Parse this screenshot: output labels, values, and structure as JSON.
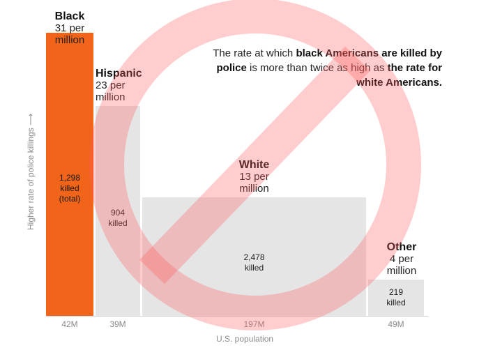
{
  "chart_data": {
    "type": "bar",
    "variable_width": true,
    "ylabel": "Higher rate of police killings ⟶",
    "xlabel": "U.S. population",
    "annotation": {
      "parts": [
        {
          "text": "The rate at which ",
          "bold": false
        },
        {
          "text": "black Americans are killed by police",
          "bold": true
        },
        {
          "text": " is more than twice as high as ",
          "bold": false
        },
        {
          "text": "the rate for white Americans.",
          "bold": true
        }
      ]
    },
    "unit_per": "per",
    "unit_million": "million",
    "series": [
      {
        "name": "Black",
        "rate": 31,
        "rate_label": "31 per",
        "population": 42,
        "population_label": "42M",
        "killed": 1298,
        "killed_label": "1,298",
        "killed_sub": "killed",
        "killed_sub2": "(total)",
        "color": "#f26419"
      },
      {
        "name": "Hispanic",
        "rate": 23,
        "rate_label": "23 per",
        "population": 39,
        "population_label": "39M",
        "killed": 904,
        "killed_label": "904",
        "killed_sub": "killed",
        "killed_sub2": "",
        "color": "#e5e5e5"
      },
      {
        "name": "White",
        "rate": 13,
        "rate_label": "13 per",
        "population": 197,
        "population_label": "197M",
        "killed": 2478,
        "killed_label": "2,478",
        "killed_sub": "killed",
        "killed_sub2": "",
        "color": "#e5e5e5"
      },
      {
        "name": "Other",
        "rate": 4,
        "rate_label": "4 per",
        "population": 49,
        "population_label": "49M",
        "killed": 219,
        "killed_label": "219",
        "killed_sub": "killed",
        "killed_sub2": "",
        "color": "#e5e5e5"
      }
    ],
    "ylim": [
      0,
      31
    ],
    "overlay": {
      "icon": "prohibition-sign-icon",
      "color": "#ff5a5a"
    }
  }
}
